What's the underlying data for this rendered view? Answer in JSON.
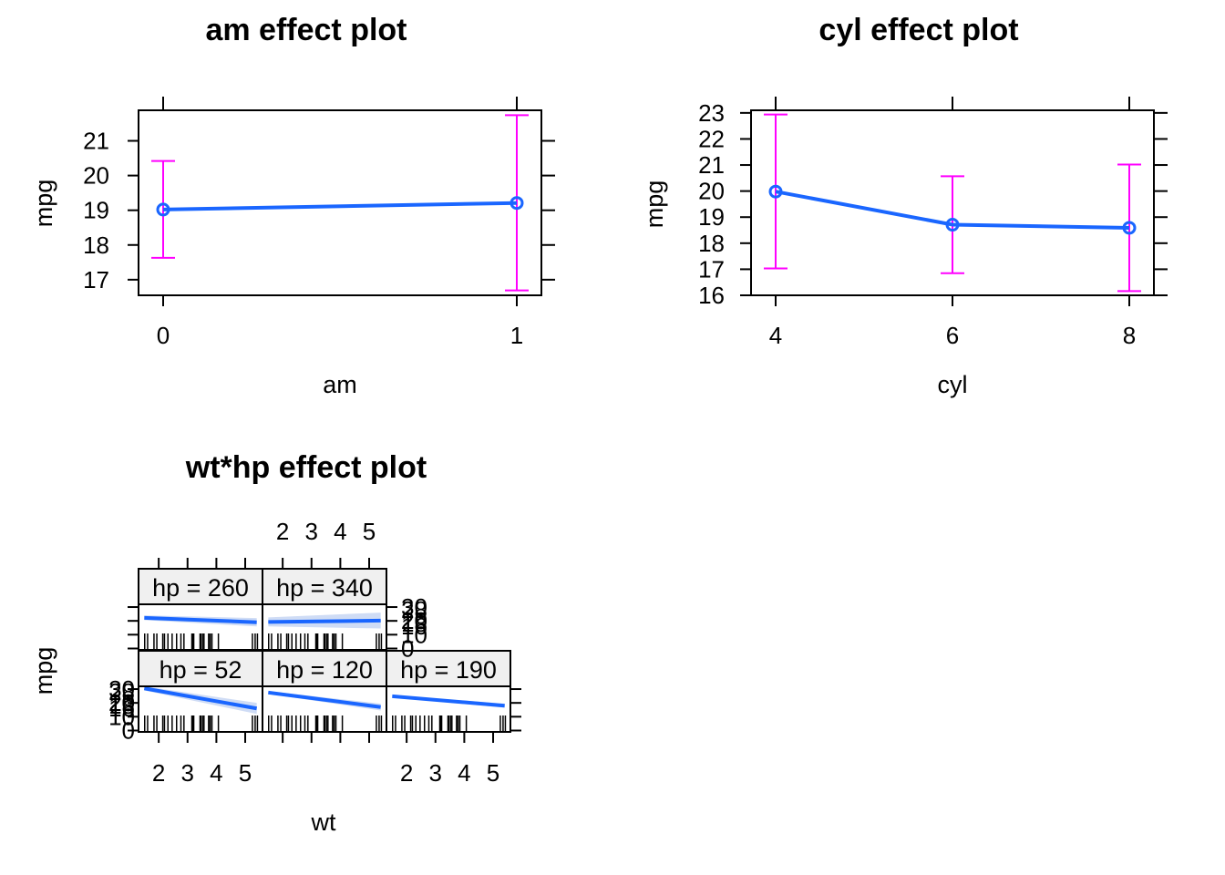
{
  "chart_data": [
    {
      "type": "line",
      "title": "am effect plot",
      "xlabel": "am",
      "ylabel": "mpg",
      "x": [
        0,
        1
      ],
      "xticks": [
        "0",
        "1"
      ],
      "y": [
        19.02,
        19.21
      ],
      "lower": [
        17.63,
        16.69
      ],
      "upper": [
        20.42,
        21.74
      ],
      "yticks": [
        "17",
        "18",
        "19",
        "20",
        "21"
      ],
      "ylim": [
        16.55,
        21.88
      ],
      "colors": {
        "fit": "#1a66ff",
        "ci": "#ff00ff"
      }
    },
    {
      "type": "line",
      "title": "cyl effect plot",
      "xlabel": "cyl",
      "ylabel": "mpg",
      "x": [
        4,
        6,
        8
      ],
      "xticks": [
        "4",
        "6",
        "8"
      ],
      "y": [
        19.98,
        18.71,
        18.59
      ],
      "lower": [
        17.03,
        16.85,
        16.16
      ],
      "upper": [
        22.94,
        20.57,
        21.02
      ],
      "yticks": [
        "16",
        "17",
        "18",
        "19",
        "20",
        "21",
        "22",
        "23"
      ],
      "ylim": [
        16.0,
        23.1
      ],
      "colors": {
        "fit": "#1a66ff",
        "ci": "#ff00ff"
      }
    },
    {
      "type": "line",
      "title": "wt*hp effect plot",
      "xlabel": "wt",
      "ylabel": "mpg",
      "xticks": [
        "2",
        "3",
        "4",
        "5"
      ],
      "yticks": [
        "0",
        "10",
        "20",
        "30"
      ],
      "ytick_labels_overlap": [
        "16",
        "18",
        "20",
        "28"
      ],
      "xlim": [
        1.3,
        5.6
      ],
      "ylim": [
        -1,
        32
      ],
      "panels": [
        {
          "label": "hp = 52",
          "x": [
            1.5,
            5.4
          ],
          "y": [
            30.5,
            16.0
          ],
          "lower": [
            29.0,
            12.0
          ],
          "upper": [
            32.0,
            20.0
          ]
        },
        {
          "label": "hp = 120",
          "x": [
            1.5,
            5.4
          ],
          "y": [
            27.5,
            17.0
          ],
          "lower": [
            26.5,
            14.5
          ],
          "upper": [
            28.5,
            19.5
          ]
        },
        {
          "label": "hp = 190",
          "x": [
            1.5,
            5.4
          ],
          "y": [
            24.8,
            18.0
          ],
          "lower": [
            24.0,
            16.5
          ],
          "upper": [
            25.6,
            19.5
          ]
        },
        {
          "label": "hp = 260",
          "x": [
            1.5,
            5.4
          ],
          "y": [
            22.2,
            19.0
          ],
          "lower": [
            20.5,
            16.0
          ],
          "upper": [
            24.0,
            22.0
          ]
        },
        {
          "label": "hp = 340",
          "x": [
            1.5,
            5.4
          ],
          "y": [
            19.2,
            20.2
          ],
          "lower": [
            16.0,
            14.5
          ],
          "upper": [
            22.5,
            26.0
          ]
        }
      ],
      "rug_wt": [
        1.513,
        1.615,
        1.835,
        1.935,
        2.14,
        2.2,
        2.32,
        2.465,
        2.62,
        2.77,
        2.875,
        3.15,
        3.17,
        3.19,
        3.215,
        3.435,
        3.44,
        3.46,
        3.52,
        3.57,
        3.73,
        3.78,
        3.84,
        3.845,
        4.07,
        5.25,
        5.345,
        5.424
      ],
      "colors": {
        "fit": "#1a66ff",
        "band": "#cfdcf5",
        "strip": "#f0f0f0"
      }
    }
  ]
}
